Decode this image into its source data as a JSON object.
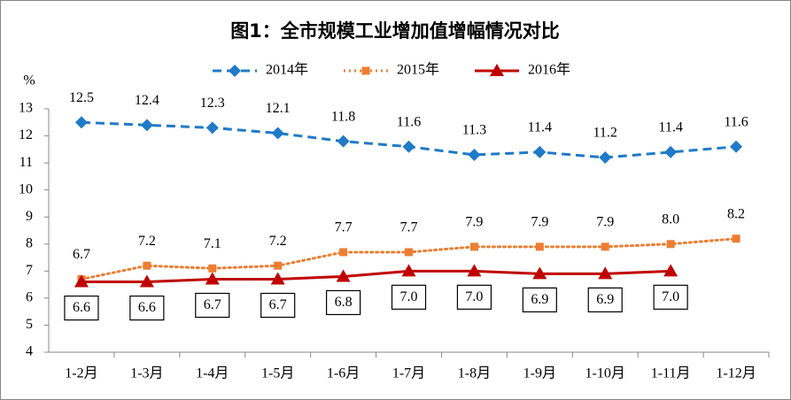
{
  "chart_data": {
    "type": "line",
    "title": "图1：全市规模工业增加值增幅情况对比",
    "y_label": "%",
    "categories": [
      "1-2月",
      "1-3月",
      "1-4月",
      "1-5月",
      "1-6月",
      "1-7月",
      "1-8月",
      "1-9月",
      "1-10月",
      "1-11月",
      "1-12月"
    ],
    "series": [
      {
        "name": "2014年",
        "color": "#1f7ac8",
        "style": "dashed",
        "marker": "diamond",
        "label_position": "above",
        "values": [
          12.5,
          12.4,
          12.3,
          12.1,
          11.8,
          11.6,
          11.3,
          11.4,
          11.2,
          11.4,
          11.6
        ],
        "value_labels": [
          "12.5",
          "12.4",
          "12.3",
          "12.1",
          "11.8",
          "11.6",
          "11.3",
          "11.4",
          "11.2",
          "11.4",
          "11.6"
        ]
      },
      {
        "name": "2015年",
        "color": "#ed7d31",
        "style": "dotted",
        "marker": "square",
        "label_position": "above",
        "values": [
          6.7,
          7.2,
          7.1,
          7.2,
          7.7,
          7.7,
          7.9,
          7.9,
          7.9,
          8.0,
          8.2
        ],
        "value_labels": [
          "6.7",
          "7.2",
          "7.1",
          "7.2",
          "7.7",
          "7.7",
          "7.9",
          "7.9",
          "7.9",
          "8.0",
          "8.2"
        ]
      },
      {
        "name": "2016年",
        "color": "#c00000",
        "style": "solid",
        "marker": "triangle",
        "label_position": "below-boxed",
        "values": [
          6.6,
          6.6,
          6.7,
          6.7,
          6.8,
          7.0,
          7.0,
          6.9,
          6.9,
          7.0,
          null
        ],
        "value_labels": [
          "6.6",
          "6.6",
          "6.7",
          "6.7",
          "6.8",
          "7.0",
          "7.0",
          "6.9",
          "6.9",
          "7.0",
          null
        ]
      }
    ],
    "ylim": [
      4,
      13
    ],
    "yticks": [
      4,
      5,
      6,
      7,
      8,
      9,
      10,
      11,
      12,
      13
    ],
    "grid": false,
    "legend": "top"
  }
}
